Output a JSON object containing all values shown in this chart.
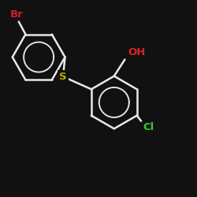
{
  "background_color": "#111111",
  "bond_color": "#e8e8e8",
  "bond_width": 1.8,
  "label_Br": {
    "text": "Br",
    "color": "#cc2222",
    "fontsize": 9.5,
    "fontweight": "bold"
  },
  "label_OH": {
    "text": "OH",
    "color": "#dd2222",
    "fontsize": 9.5,
    "fontweight": "bold"
  },
  "label_Cl": {
    "text": "Cl",
    "color": "#33cc33",
    "fontsize": 9.5,
    "fontweight": "bold"
  },
  "label_S": {
    "text": "S",
    "color": "#bbaa00",
    "fontsize": 9.5,
    "fontweight": "bold"
  },
  "figsize": [
    2.5,
    2.5
  ],
  "dpi": 100,
  "xlim": [
    0,
    10
  ],
  "ylim": [
    0,
    10
  ]
}
